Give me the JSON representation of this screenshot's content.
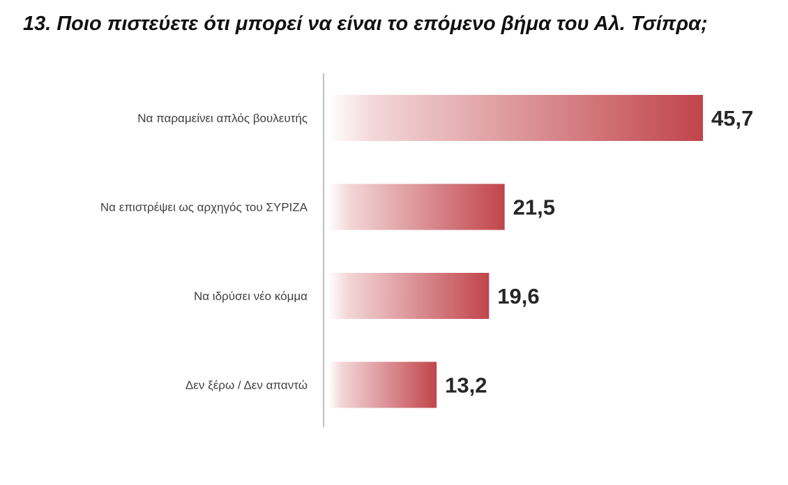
{
  "chart_data": {
    "type": "bar",
    "orientation": "horizontal",
    "title": "13. Ποιο πιστεύετε ότι μπορεί να είναι το επόμενο βήμα του Αλ. Τσίπρα;",
    "categories": [
      "Να παραμείνει απλός βουλευτής",
      "Να επιστρέψει ως αρχηγός του ΣΥΡΙΖΑ",
      "Να ιδρύσει νέο κόμμα",
      "Δεν ξέρω / Δεν απαντώ"
    ],
    "values": [
      45.7,
      21.5,
      19.6,
      13.2
    ],
    "value_labels": [
      "45,7",
      "21,5",
      "19,6",
      "13,2"
    ],
    "xlim": [
      0,
      45.7
    ],
    "grid": false,
    "legend": "none",
    "colors": {
      "bar_start": "#ffffff",
      "bar_end": "#c0454b",
      "axis": "#bfbfbf"
    }
  }
}
